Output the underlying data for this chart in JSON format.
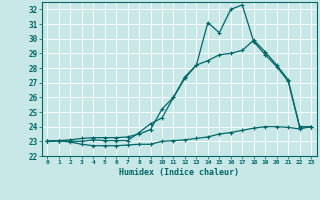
{
  "background_color": "#c8e8e8",
  "grid_color": "#ffffff",
  "line_color": "#006666",
  "xlabel": "Humidex (Indice chaleur)",
  "xlim": [
    -0.5,
    23.5
  ],
  "ylim": [
    22.0,
    32.5
  ],
  "xticks": [
    0,
    1,
    2,
    3,
    4,
    5,
    6,
    7,
    8,
    9,
    10,
    11,
    12,
    13,
    14,
    15,
    16,
    17,
    18,
    19,
    20,
    21,
    22,
    23
  ],
  "yticks": [
    22,
    23,
    24,
    25,
    26,
    27,
    28,
    29,
    30,
    31,
    32
  ],
  "line1_x": [
    0,
    1,
    2,
    3,
    4,
    5,
    6,
    7,
    8,
    9,
    10,
    11,
    12,
    13,
    14,
    15,
    16,
    17,
    18,
    19,
    20,
    21,
    22,
    23
  ],
  "line1_y": [
    23.0,
    23.05,
    22.95,
    22.8,
    22.7,
    22.7,
    22.7,
    22.75,
    22.8,
    22.8,
    23.0,
    23.05,
    23.1,
    23.2,
    23.3,
    23.5,
    23.6,
    23.75,
    23.9,
    24.0,
    24.0,
    23.95,
    23.85,
    24.0
  ],
  "line2_x": [
    0,
    1,
    2,
    3,
    4,
    5,
    6,
    7,
    8,
    9,
    10,
    11,
    12,
    13,
    14,
    15,
    16,
    17,
    18,
    19,
    20,
    21,
    22,
    23
  ],
  "line2_y": [
    23.0,
    23.05,
    23.1,
    23.2,
    23.25,
    23.25,
    23.25,
    23.3,
    23.5,
    23.8,
    25.2,
    26.0,
    27.4,
    28.2,
    28.5,
    28.9,
    29.0,
    29.2,
    29.9,
    29.1,
    28.2,
    27.2,
    24.0,
    24.0
  ],
  "line3_x": [
    0,
    1,
    2,
    3,
    4,
    5,
    6,
    7,
    8,
    9,
    10,
    11,
    12,
    13,
    14,
    15,
    16,
    17,
    18,
    19,
    20,
    21,
    22,
    23
  ],
  "line3_y": [
    23.0,
    23.05,
    23.0,
    23.0,
    23.1,
    23.05,
    23.05,
    23.05,
    23.6,
    24.2,
    24.6,
    26.0,
    27.3,
    28.2,
    31.1,
    30.4,
    32.0,
    32.3,
    29.8,
    28.9,
    28.1,
    27.1,
    24.0,
    24.0
  ]
}
